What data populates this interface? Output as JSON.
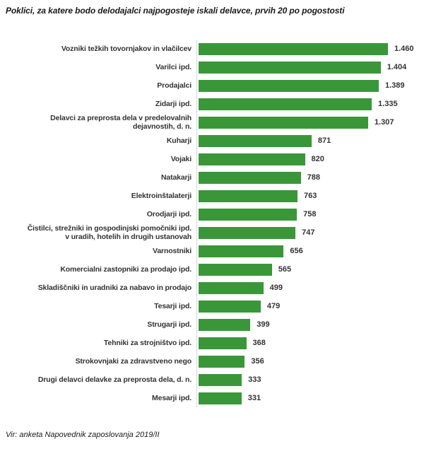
{
  "title": "Poklici, za katere bodo delodajalci najpogosteje iskali delavce, prvih 20 po pogostosti",
  "source": "Vir: anketa Napovednik zaposlovanja 2019/II",
  "colors": {
    "bar": "#3a9739",
    "axis": "#d6d6d6",
    "text": "#333333"
  },
  "chart_data": {
    "type": "bar",
    "orientation": "horizontal",
    "title": "Poklici, za katere bodo delodajalci najpogosteje iskali delavce, prvih 20 po pogostosti",
    "xlabel": "",
    "ylabel": "",
    "xlim": [
      0,
      1460
    ],
    "grid": false,
    "legend": false,
    "value_labels_shown": true,
    "categories": [
      "Vozniki težkih tovornjakov in vlačilcev",
      "Varilci ipd.",
      "Prodajalci",
      "Zidarji ipd.",
      "Delavci za preprosta dela v predelovalnih\ndejavnostih, d. n.",
      "Kuharji",
      "Vojaki",
      "Natakarji",
      "Elektroinštalaterji",
      "Orodjarji ipd.",
      "Čistilci, strežniki in gospodinjski pomočniki ipd.\nv uradih, hotelih in drugih ustanovah",
      "Varnostniki",
      "Komercialni zastopniki za prodajo ipd.",
      "Skladiščniki in uradniki za nabavo in prodajo",
      "Tesarji ipd.",
      "Strugarji ipd.",
      "Tehniki za strojništvo ipd.",
      "Strokovnjaki za zdravstveno nego",
      "Drugi delavci delavke za preprosta dela, d. n.",
      "Mesarji ipd."
    ],
    "values": [
      1460,
      1404,
      1389,
      1335,
      1307,
      871,
      820,
      788,
      763,
      758,
      747,
      656,
      565,
      499,
      479,
      399,
      368,
      356,
      333,
      331
    ],
    "value_labels": [
      "1.460",
      "1.404",
      "1.389",
      "1.335",
      "1.307",
      "871",
      "820",
      "788",
      "763",
      "758",
      "747",
      "656",
      "565",
      "499",
      "479",
      "399",
      "368",
      "356",
      "333",
      "331"
    ]
  }
}
